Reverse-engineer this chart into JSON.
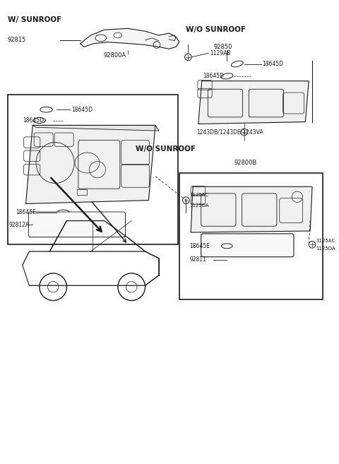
{
  "bg_color": "#ffffff",
  "line_color": "#1a1a1a",
  "text_color": "#1a1a1a",
  "label_ws": "W/ SUNROOF",
  "label_wo1": "W/O SUNROOF",
  "label_wo2": "W/O SUNROOF",
  "pn_92815": "92815",
  "pn_1129AB": "1129AB",
  "pn_92800A": "92800A",
  "pn_18645D_a": "18645D",
  "pn_18645D_b": "18645D",
  "pn_18645E_a": "18645E",
  "pn_92812A": "92812A",
  "pn_1125AC": "1125AC",
  "pn_1125DA": "1125DA",
  "pn_1243": "1243DB/1243DE/1243VA",
  "pn_92850": "92850",
  "pn_18645D_c": "18645D",
  "pn_18645D_d": "18645D",
  "pn_92800B": "92800B",
  "pn_18645E_b": "18645E",
  "pn_92811": "92811",
  "pn_1125AC_b": "1125AC",
  "pn_1125DA_b": "1125DA"
}
